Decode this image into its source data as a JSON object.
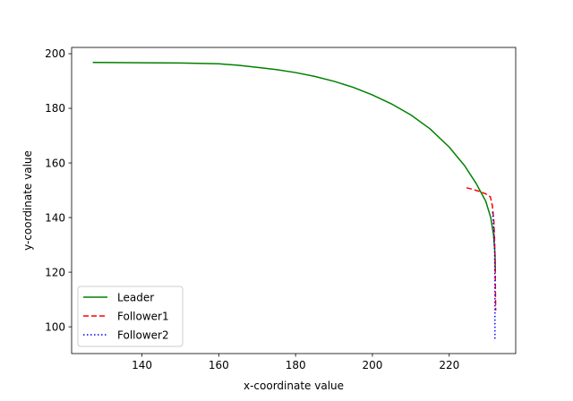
{
  "chart_data": {
    "type": "line",
    "title": "",
    "xlabel": "x-coordinate value",
    "ylabel": "y-coordinate value",
    "xlim": [
      121.7,
      237.3
    ],
    "ylim": [
      90.2,
      202.3
    ],
    "xticks": [
      140,
      160,
      180,
      200,
      220
    ],
    "yticks": [
      100,
      120,
      140,
      160,
      180,
      200
    ],
    "grid": false,
    "legend_position": "lower-left",
    "series": [
      {
        "name": "Leader",
        "color": "#008000",
        "style": "solid",
        "points": [
          [
            127.2,
            196.8
          ],
          [
            140,
            196.7
          ],
          [
            150,
            196.6
          ],
          [
            160,
            196.3
          ],
          [
            165,
            195.8
          ],
          [
            170,
            195.0
          ],
          [
            175,
            194.2
          ],
          [
            180,
            193.1
          ],
          [
            185,
            191.7
          ],
          [
            190,
            189.9
          ],
          [
            195,
            187.7
          ],
          [
            200,
            184.9
          ],
          [
            205,
            181.6
          ],
          [
            210,
            177.6
          ],
          [
            215,
            172.5
          ],
          [
            220,
            165.8
          ],
          [
            224,
            159.0
          ],
          [
            227,
            152.5
          ],
          [
            229.5,
            146.0
          ],
          [
            230.8,
            140.0
          ],
          [
            231.5,
            134.0
          ],
          [
            231.9,
            127.0
          ],
          [
            232.0,
            120.0
          ]
        ]
      },
      {
        "name": "Follower1",
        "color": "#ff0000",
        "style": "dashed",
        "points": [
          [
            224.5,
            150.9
          ],
          [
            226,
            150.4
          ],
          [
            228,
            149.5
          ],
          [
            229.5,
            148.7
          ],
          [
            230.7,
            147.6
          ],
          [
            231.2,
            144.5
          ],
          [
            231.6,
            139.0
          ],
          [
            231.8,
            132.0
          ],
          [
            231.95,
            124.0
          ],
          [
            232.0,
            116.0
          ],
          [
            232.05,
            110.0
          ],
          [
            232.1,
            106.0
          ]
        ]
      },
      {
        "name": "Follower2",
        "color": "#0000ff",
        "style": "dotted",
        "points": [
          [
            231.3,
            142.0
          ],
          [
            231.6,
            136.0
          ],
          [
            231.8,
            128.0
          ],
          [
            231.9,
            118.0
          ],
          [
            231.9,
            108.0
          ],
          [
            231.9,
            100.0
          ],
          [
            231.9,
            95.6
          ]
        ]
      }
    ]
  }
}
